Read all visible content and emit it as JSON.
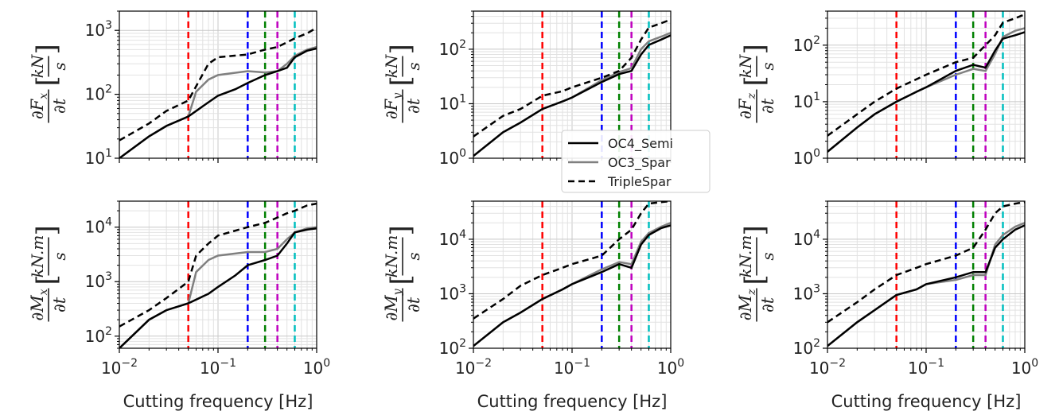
{
  "figure": {
    "xlabel": "Cutting frequency [Hz]",
    "xticks": [
      {
        "value": 0.01,
        "base": "10",
        "exp": "−2"
      },
      {
        "value": 0.1,
        "base": "10",
        "exp": "−1"
      },
      {
        "value": 1,
        "base": "10",
        "exp": "0"
      }
    ],
    "legend": [
      {
        "label": "OC4_Semi",
        "color": "#000000",
        "style": "solid"
      },
      {
        "label": "OC3_Spar",
        "color": "#808080",
        "style": "solid"
      },
      {
        "label": "TripleSpar",
        "color": "#000000",
        "style": "dashed"
      }
    ],
    "vlines": [
      {
        "x": 0.05,
        "color": "#ff0000"
      },
      {
        "x": 0.2,
        "color": "#0000ff"
      },
      {
        "x": 0.3,
        "color": "#008000"
      },
      {
        "x": 0.4,
        "color": "#bf00bf"
      },
      {
        "x": 0.6,
        "color": "#00bfbf"
      }
    ]
  },
  "chart_data": [
    {
      "type": "line",
      "xscale": "log",
      "yscale": "log",
      "xlim": [
        0.01,
        1
      ],
      "ylim": [
        10,
        2000
      ],
      "ylabel": {
        "sym": "F",
        "sub": "x",
        "unit": "kN"
      },
      "yticks": [
        {
          "value": 10,
          "base": "10",
          "exp": "1"
        },
        {
          "value": 100,
          "base": "10",
          "exp": "2"
        },
        {
          "value": 1000,
          "base": "10",
          "exp": "3"
        }
      ],
      "series": [
        {
          "name": "OC4_Semi",
          "x": [
            0.01,
            0.02,
            0.03,
            0.05,
            0.08,
            0.1,
            0.15,
            0.2,
            0.3,
            0.4,
            0.5,
            0.6,
            0.8,
            1
          ],
          "y": [
            10,
            22,
            32,
            45,
            75,
            95,
            120,
            150,
            200,
            230,
            260,
            380,
            480,
            520
          ]
        },
        {
          "name": "OC3_Spar",
          "x": [
            0.01,
            0.02,
            0.03,
            0.05,
            0.06,
            0.08,
            0.1,
            0.2,
            0.3,
            0.4,
            0.5,
            0.6,
            0.8,
            1
          ],
          "y": [
            10,
            22,
            32,
            45,
            110,
            170,
            200,
            230,
            220,
            230,
            300,
            400,
            500,
            550
          ]
        },
        {
          "name": "TripleSpar",
          "x": [
            0.01,
            0.02,
            0.03,
            0.05,
            0.08,
            0.1,
            0.2,
            0.3,
            0.4,
            0.5,
            0.6,
            0.8,
            1
          ],
          "y": [
            19,
            35,
            55,
            80,
            300,
            380,
            420,
            500,
            550,
            650,
            750,
            900,
            1100
          ]
        }
      ]
    },
    {
      "type": "line",
      "xscale": "log",
      "yscale": "log",
      "xlim": [
        0.01,
        1
      ],
      "ylim": [
        1,
        500
      ],
      "ylabel": {
        "sym": "F",
        "sub": "y",
        "unit": "kN"
      },
      "yticks": [
        {
          "value": 1,
          "base": "10",
          "exp": "0"
        },
        {
          "value": 10,
          "base": "10",
          "exp": "1"
        },
        {
          "value": 100,
          "base": "10",
          "exp": "2"
        }
      ],
      "series": [
        {
          "name": "OC4_Semi",
          "x": [
            0.01,
            0.02,
            0.03,
            0.05,
            0.08,
            0.1,
            0.2,
            0.3,
            0.4,
            0.5,
            0.6,
            0.8,
            1
          ],
          "y": [
            1.1,
            3,
            4.5,
            8,
            11,
            13,
            25,
            35,
            40,
            80,
            120,
            150,
            180
          ]
        },
        {
          "name": "OC3_Spar",
          "x": [
            0.01,
            0.02,
            0.03,
            0.05,
            0.08,
            0.1,
            0.2,
            0.3,
            0.4,
            0.5,
            0.6,
            0.8,
            1
          ],
          "y": [
            1.1,
            3,
            4.5,
            8,
            11,
            13,
            27,
            38,
            45,
            100,
            140,
            170,
            200
          ]
        },
        {
          "name": "TripleSpar",
          "x": [
            0.01,
            0.02,
            0.03,
            0.05,
            0.08,
            0.1,
            0.2,
            0.3,
            0.4,
            0.5,
            0.6,
            0.8,
            1
          ],
          "y": [
            2.5,
            6,
            8,
            14,
            17,
            20,
            30,
            40,
            70,
            150,
            250,
            300,
            350
          ]
        }
      ]
    },
    {
      "type": "line",
      "xscale": "log",
      "yscale": "log",
      "xlim": [
        0.01,
        1
      ],
      "ylim": [
        1,
        400
      ],
      "ylabel": {
        "sym": "F",
        "sub": "z",
        "unit": "kN"
      },
      "yticks": [
        {
          "value": 1,
          "base": "10",
          "exp": "0"
        },
        {
          "value": 10,
          "base": "10",
          "exp": "1"
        },
        {
          "value": 100,
          "base": "10",
          "exp": "2"
        }
      ],
      "series": [
        {
          "name": "OC4_Semi",
          "x": [
            0.01,
            0.02,
            0.03,
            0.05,
            0.08,
            0.1,
            0.2,
            0.3,
            0.4,
            0.5,
            0.6,
            0.8,
            1
          ],
          "y": [
            1.3,
            3.5,
            6,
            10,
            15,
            18,
            35,
            45,
            40,
            80,
            130,
            150,
            170
          ]
        },
        {
          "name": "OC3_Spar",
          "x": [
            0.01,
            0.02,
            0.03,
            0.05,
            0.08,
            0.1,
            0.2,
            0.3,
            0.4,
            0.5,
            0.6,
            0.8,
            1
          ],
          "y": [
            1.3,
            3.5,
            6,
            10,
            15,
            18,
            30,
            38,
            35,
            70,
            140,
            180,
            200
          ]
        },
        {
          "name": "TripleSpar",
          "x": [
            0.01,
            0.02,
            0.03,
            0.05,
            0.08,
            0.1,
            0.2,
            0.3,
            0.4,
            0.5,
            0.6,
            0.8,
            1
          ],
          "y": [
            2.5,
            6,
            10,
            17,
            25,
            30,
            50,
            60,
            100,
            150,
            250,
            300,
            350
          ]
        }
      ]
    },
    {
      "type": "line",
      "xscale": "log",
      "yscale": "log",
      "xlim": [
        0.01,
        1
      ],
      "ylim": [
        60,
        30000
      ],
      "ylabel": {
        "sym": "M",
        "sub": "x",
        "unit": "kN.m"
      },
      "yticks": [
        {
          "value": 100,
          "base": "10",
          "exp": "2"
        },
        {
          "value": 1000,
          "base": "10",
          "exp": "3"
        },
        {
          "value": 10000,
          "base": "10",
          "exp": "4"
        }
      ],
      "series": [
        {
          "name": "OC4_Semi",
          "x": [
            0.01,
            0.02,
            0.03,
            0.05,
            0.08,
            0.1,
            0.15,
            0.2,
            0.3,
            0.4,
            0.5,
            0.6,
            0.8,
            1
          ],
          "y": [
            60,
            200,
            300,
            400,
            600,
            800,
            1300,
            2000,
            2500,
            3000,
            5000,
            8000,
            9000,
            9500
          ]
        },
        {
          "name": "OC3_Spar",
          "x": [
            0.01,
            0.02,
            0.03,
            0.05,
            0.06,
            0.08,
            0.1,
            0.2,
            0.3,
            0.4,
            0.5,
            0.6,
            0.8,
            1
          ],
          "y": [
            60,
            200,
            300,
            400,
            1500,
            2500,
            3000,
            3500,
            3500,
            4000,
            6000,
            8000,
            9500,
            10000
          ]
        },
        {
          "name": "TripleSpar",
          "x": [
            0.01,
            0.02,
            0.03,
            0.05,
            0.06,
            0.08,
            0.1,
            0.2,
            0.3,
            0.4,
            0.5,
            0.6,
            0.8,
            1
          ],
          "y": [
            150,
            300,
            500,
            1000,
            3000,
            5000,
            7000,
            10000,
            12000,
            15000,
            18000,
            20000,
            25000,
            27000
          ]
        }
      ]
    },
    {
      "type": "line",
      "xscale": "log",
      "yscale": "log",
      "xlim": [
        0.01,
        1
      ],
      "ylim": [
        100,
        50000
      ],
      "ylabel": {
        "sym": "M",
        "sub": "y",
        "unit": "kN.m"
      },
      "yticks": [
        {
          "value": 100,
          "base": "10",
          "exp": "2"
        },
        {
          "value": 1000,
          "base": "10",
          "exp": "3"
        },
        {
          "value": 10000,
          "base": "10",
          "exp": "4"
        }
      ],
      "series": [
        {
          "name": "OC4_Semi",
          "x": [
            0.01,
            0.02,
            0.03,
            0.05,
            0.08,
            0.1,
            0.2,
            0.3,
            0.4,
            0.5,
            0.6,
            0.8,
            1
          ],
          "y": [
            110,
            300,
            450,
            800,
            1200,
            1500,
            2500,
            3500,
            3000,
            8000,
            12000,
            16000,
            18000
          ]
        },
        {
          "name": "OC3_Spar",
          "x": [
            0.01,
            0.02,
            0.03,
            0.05,
            0.08,
            0.1,
            0.2,
            0.3,
            0.4,
            0.5,
            0.6,
            0.8,
            1
          ],
          "y": [
            110,
            300,
            450,
            800,
            1200,
            1500,
            2800,
            3800,
            3500,
            9000,
            13000,
            17000,
            20000
          ]
        },
        {
          "name": "TripleSpar",
          "x": [
            0.01,
            0.02,
            0.03,
            0.05,
            0.08,
            0.1,
            0.2,
            0.3,
            0.4,
            0.5,
            0.6,
            0.8,
            1
          ],
          "y": [
            350,
            800,
            1400,
            2200,
            3000,
            3500,
            5000,
            10000,
            15000,
            30000,
            45000,
            48000,
            50000
          ]
        }
      ]
    },
    {
      "type": "line",
      "xscale": "log",
      "yscale": "log",
      "xlim": [
        0.01,
        1
      ],
      "ylim": [
        100,
        50000
      ],
      "ylabel": {
        "sym": "M",
        "sub": "z",
        "unit": "kN.m"
      },
      "yticks": [
        {
          "value": 100,
          "base": "10",
          "exp": "2"
        },
        {
          "value": 1000,
          "base": "10",
          "exp": "3"
        },
        {
          "value": 10000,
          "base": "10",
          "exp": "4"
        }
      ],
      "series": [
        {
          "name": "OC4_Semi",
          "x": [
            0.01,
            0.02,
            0.03,
            0.05,
            0.08,
            0.1,
            0.2,
            0.3,
            0.4,
            0.5,
            0.6,
            0.8,
            1
          ],
          "y": [
            110,
            300,
            500,
            950,
            1200,
            1500,
            2000,
            2500,
            2500,
            7000,
            10000,
            15000,
            18000
          ]
        },
        {
          "name": "OC3_Spar",
          "x": [
            0.01,
            0.02,
            0.03,
            0.05,
            0.08,
            0.1,
            0.2,
            0.3,
            0.4,
            0.5,
            0.6,
            0.8,
            1
          ],
          "y": [
            110,
            300,
            500,
            950,
            1200,
            1500,
            1800,
            2200,
            2200,
            8000,
            12000,
            17000,
            20000
          ]
        },
        {
          "name": "TripleSpar",
          "x": [
            0.01,
            0.02,
            0.03,
            0.05,
            0.08,
            0.1,
            0.2,
            0.3,
            0.4,
            0.5,
            0.6,
            0.8,
            1
          ],
          "y": [
            300,
            700,
            1200,
            2200,
            3000,
            3500,
            5000,
            7000,
            15000,
            30000,
            40000,
            45000,
            48000
          ]
        }
      ]
    }
  ]
}
